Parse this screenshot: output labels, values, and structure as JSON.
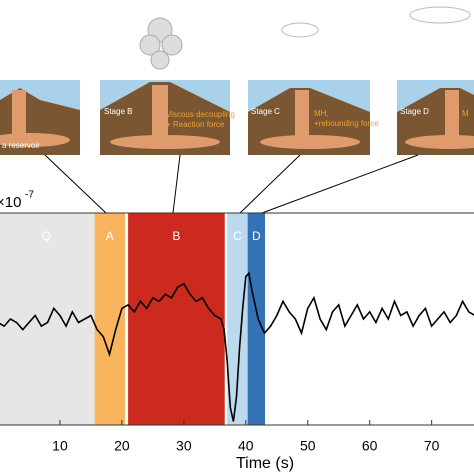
{
  "chart_data": {
    "type": "line",
    "x_label": "Time (s)",
    "y_scale": "×10",
    "y_scale_exp": "-7",
    "xlim": [
      0,
      77
    ],
    "ylim": [
      -3,
      3
    ],
    "xticks": [
      10,
      20,
      30,
      40,
      50,
      60,
      70
    ],
    "bands": [
      {
        "label": "Q",
        "start": 0,
        "end": 15.6,
        "color": "#e6e6e6"
      },
      {
        "label": "A",
        "start": 15.6,
        "end": 20.5,
        "color": "#f8b55e"
      },
      {
        "label": "B",
        "start": 21,
        "end": 36.6,
        "color": "#cc2a1e"
      },
      {
        "label": "C",
        "start": 37,
        "end": 40.3,
        "color": "#bcd9ee"
      },
      {
        "label": "D",
        "start": 40.3,
        "end": 43.1,
        "color": "#3373b5"
      }
    ],
    "panels": [
      {
        "texts": [
          "a reservoir"
        ]
      },
      {
        "texts": [
          "Stage B",
          "Viscous decoupling",
          "+ Reaction force"
        ]
      },
      {
        "texts": [
          "Stage C",
          "MH,",
          "+rebounding force"
        ]
      },
      {
        "texts": [
          "Stage D",
          "M"
        ]
      }
    ],
    "x": [
      0,
      1,
      2,
      3,
      4,
      5,
      6,
      7,
      8,
      9,
      10,
      11,
      12,
      13,
      14,
      15,
      16,
      17,
      18,
      19,
      20,
      21,
      22,
      23,
      24,
      25,
      26,
      27,
      28,
      29,
      30,
      31,
      32,
      33,
      34,
      35,
      36,
      36.5,
      37,
      37.5,
      38,
      38.5,
      39,
      39.5,
      40,
      40.5,
      41,
      42,
      43,
      44,
      45,
      46,
      47,
      48,
      49,
      50,
      51,
      52,
      53,
      54,
      55,
      56,
      57,
      58,
      59,
      60,
      61,
      62,
      63,
      64,
      65,
      66,
      67,
      68,
      69,
      70,
      71,
      72,
      73,
      74,
      75,
      76,
      77
    ],
    "series": [
      {
        "color": "#000000",
        "values": [
          -0.1,
          -0.2,
          0.0,
          -0.1,
          -0.3,
          -0.1,
          0.1,
          -0.2,
          -0.1,
          0.3,
          0.1,
          -0.2,
          0.2,
          -0.1,
          0.0,
          0.1,
          -0.3,
          -0.5,
          -1.0,
          -0.3,
          0.3,
          0.4,
          0.2,
          0.5,
          0.3,
          0.6,
          0.5,
          0.7,
          0.6,
          0.9,
          1.0,
          0.7,
          0.5,
          0.6,
          0.3,
          0.1,
          0.0,
          -0.3,
          -1.2,
          -2.5,
          -2.9,
          -2.2,
          -0.8,
          0.3,
          1.2,
          1.3,
          0.8,
          0.0,
          -0.4,
          -0.2,
          0.1,
          0.5,
          0.2,
          0.0,
          -0.4,
          0.3,
          0.6,
          0.0,
          -0.3,
          0.2,
          0.4,
          -0.2,
          0.1,
          0.4,
          0.0,
          0.2,
          -0.1,
          0.3,
          0.0,
          0.5,
          0.1,
          0.2,
          -0.2,
          0.1,
          0.3,
          -0.2,
          0.0,
          0.2,
          -0.1,
          0.1,
          0.5,
          0.2,
          0.1
        ]
      }
    ]
  }
}
